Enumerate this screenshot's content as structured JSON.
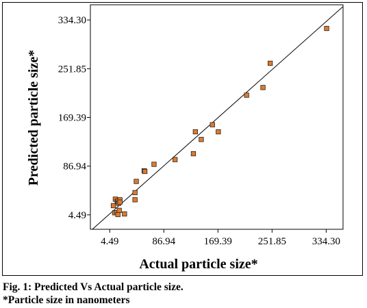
{
  "chart_data": {
    "type": "scatter",
    "title": "",
    "xlabel": "Actual particle size*",
    "ylabel": "Predicted particle size*",
    "xlim": [
      -25,
      360
    ],
    "ylim": [
      -20,
      360
    ],
    "xticks": [
      4.49,
      86.94,
      169.39,
      251.85,
      334.3
    ],
    "yticks": [
      4.49,
      86.94,
      169.39,
      251.85,
      334.3
    ],
    "xtick_labels": [
      "4.49",
      "86.94",
      "169.39",
      "251.85",
      "334.30"
    ],
    "ytick_labels": [
      "4.49",
      "86.94",
      "169.39",
      "251.85",
      "334.30"
    ],
    "grid": false,
    "legend": "none",
    "reference_line": {
      "label": "",
      "x": [
        -25,
        360
      ],
      "y": [
        -23,
        357
      ]
    },
    "marker_color": "#e07a2c",
    "marker_edge_color": "#222222",
    "line_color": "#000000",
    "points": [
      {
        "x": 10,
        "y": 20
      },
      {
        "x": 12,
        "y": 8
      },
      {
        "x": 13,
        "y": 31
      },
      {
        "x": 15,
        "y": 8
      },
      {
        "x": 16,
        "y": 27
      },
      {
        "x": 17,
        "y": 28
      },
      {
        "x": 17,
        "y": 5
      },
      {
        "x": 18,
        "y": 24
      },
      {
        "x": 19,
        "y": 12
      },
      {
        "x": 20,
        "y": 30
      },
      {
        "x": 20,
        "y": 26
      },
      {
        "x": 27,
        "y": 6
      },
      {
        "x": 43,
        "y": 30
      },
      {
        "x": 43,
        "y": 42
      },
      {
        "x": 45,
        "y": 61
      },
      {
        "x": 57,
        "y": 79
      },
      {
        "x": 58,
        "y": 78
      },
      {
        "x": 72,
        "y": 90
      },
      {
        "x": 104,
        "y": 98
      },
      {
        "x": 132,
        "y": 108
      },
      {
        "x": 135,
        "y": 145
      },
      {
        "x": 144,
        "y": 132
      },
      {
        "x": 161,
        "y": 157
      },
      {
        "x": 170,
        "y": 145
      },
      {
        "x": 213,
        "y": 207
      },
      {
        "x": 238,
        "y": 220
      },
      {
        "x": 249,
        "y": 261
      },
      {
        "x": 335,
        "y": 320
      }
    ]
  },
  "caption": {
    "line1": "Fig. 1: Predicted Vs Actual particle size.",
    "line2": "*Particle size in nanometers"
  }
}
